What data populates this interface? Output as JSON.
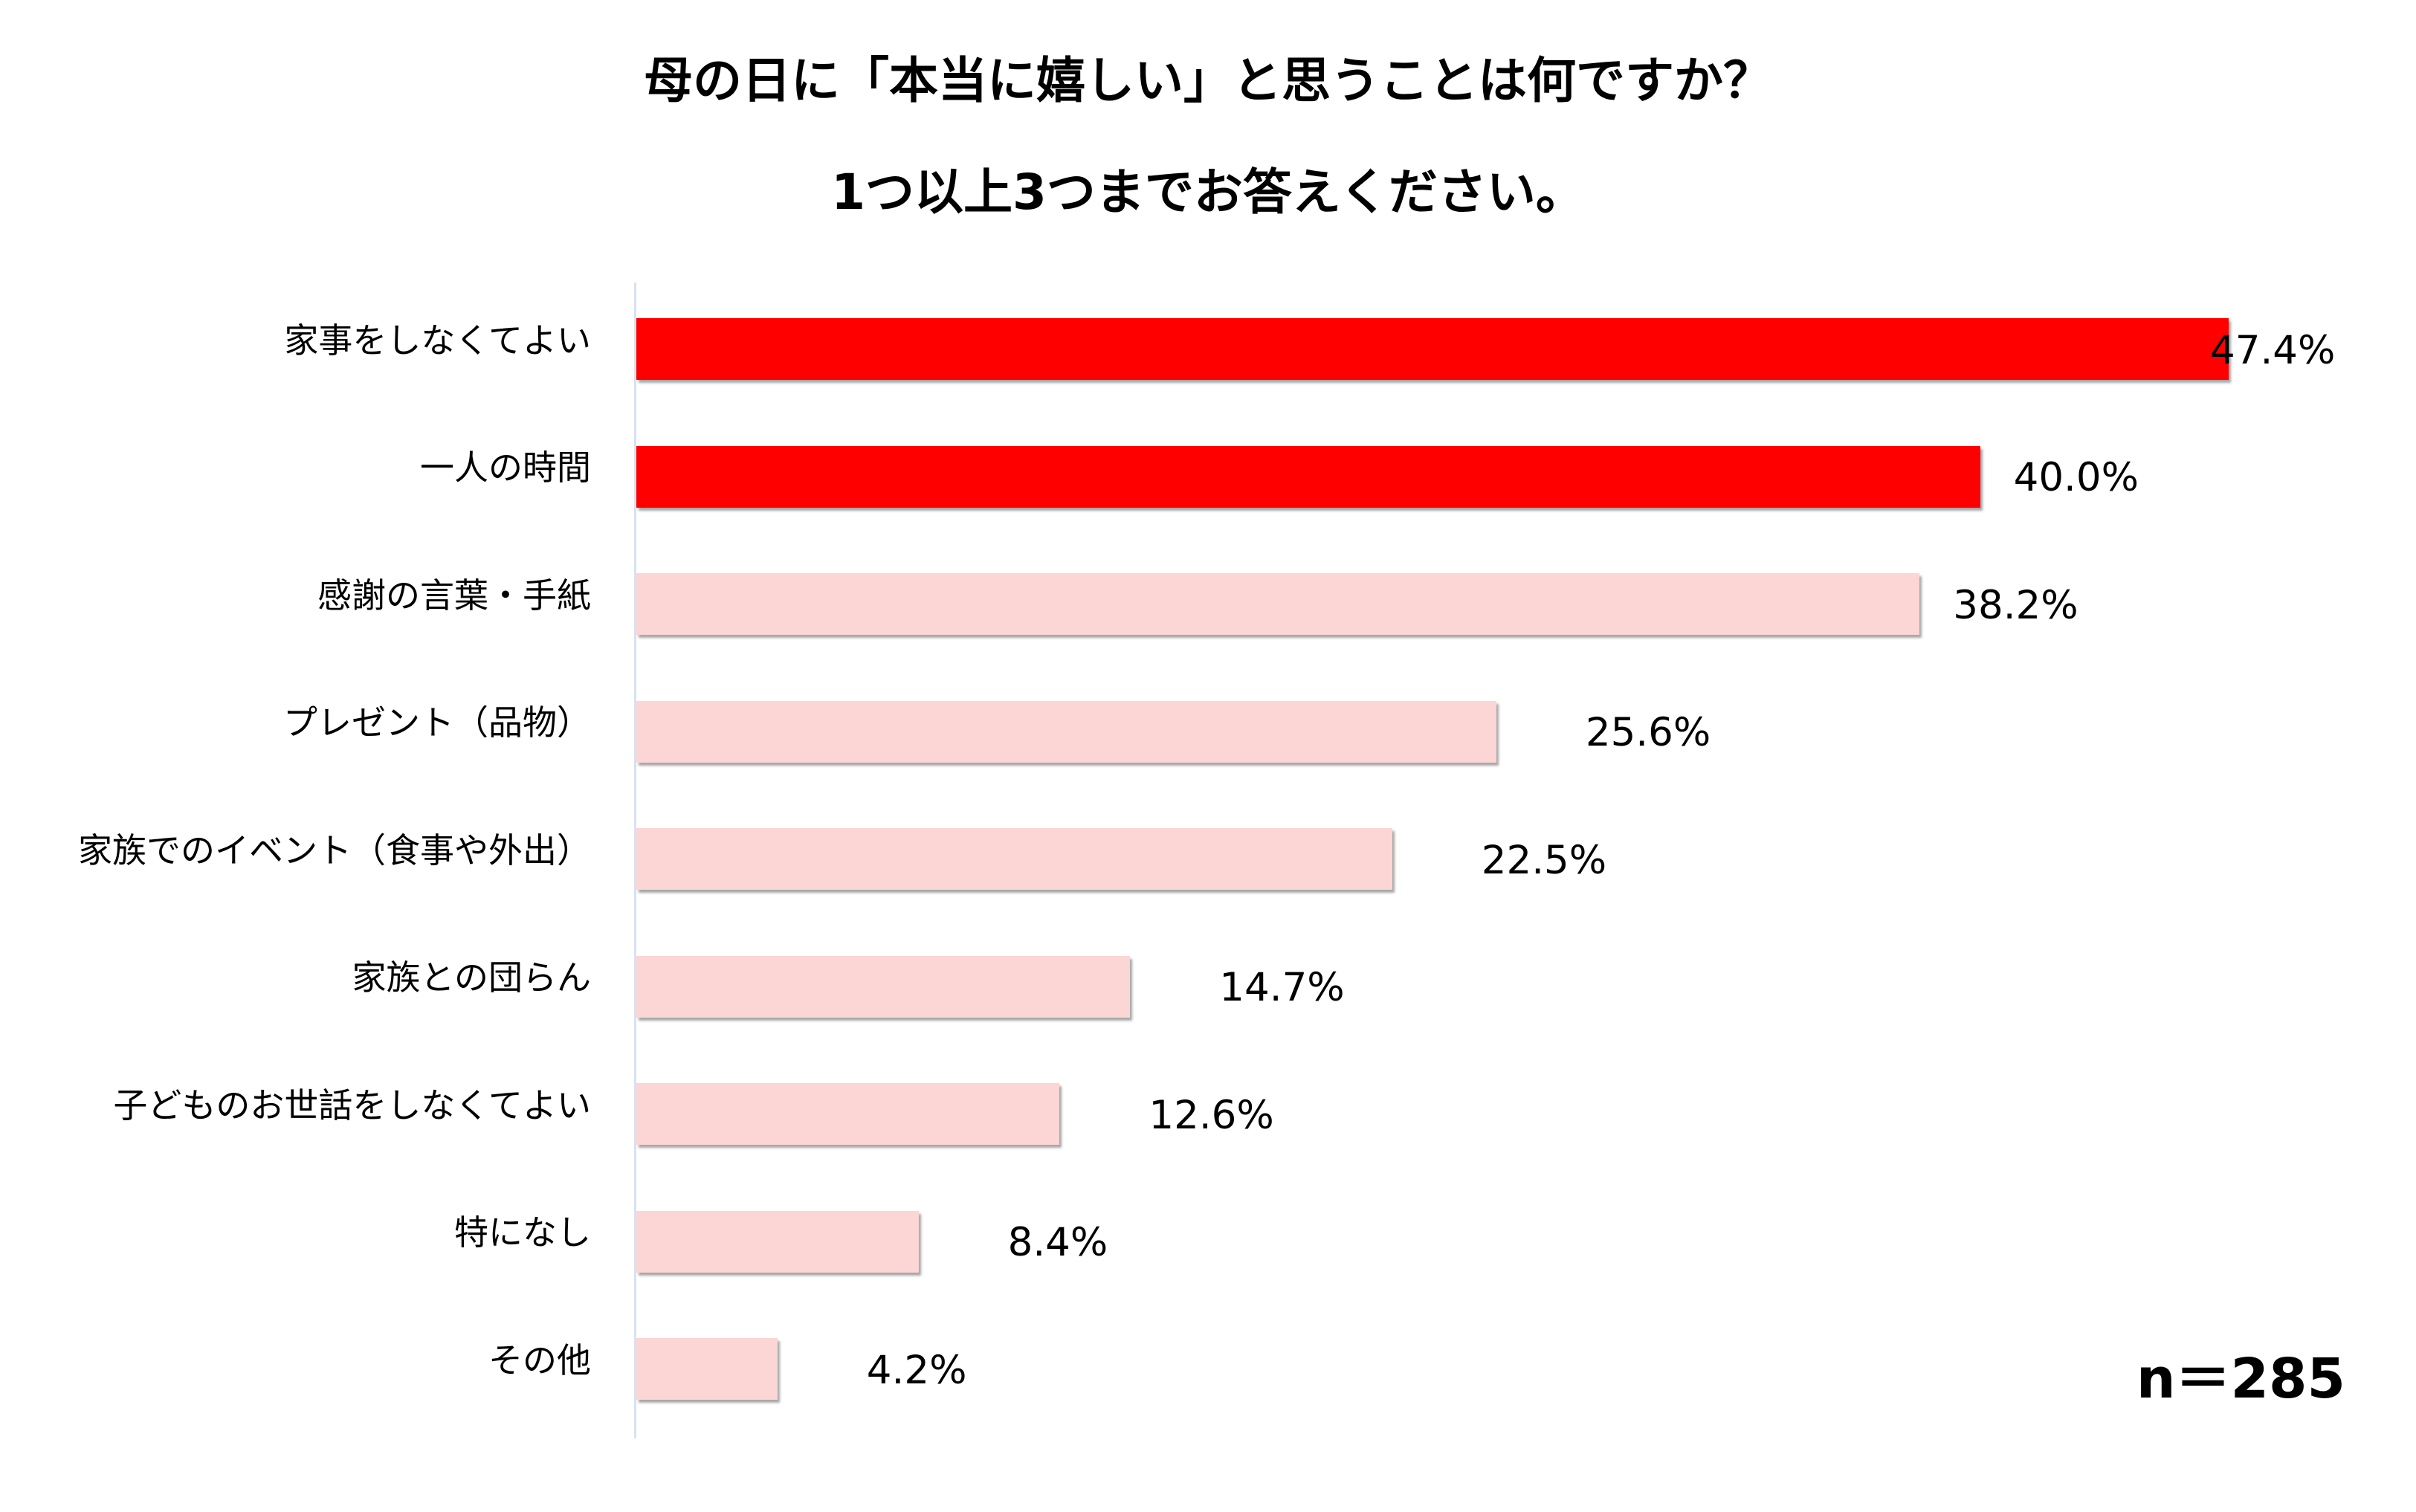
{
  "chart_data": {
    "type": "bar",
    "orientation": "horizontal",
    "title": "母の日に「本当に嬉しい」と思うことは何ですか？",
    "subtitle": "1つ以上3つまでお答えください。",
    "categories": [
      "家事をしなくてよい",
      "一人の時間",
      "感謝の言葉・手紙",
      "プレゼント（品物）",
      "家族でのイベント（食事や外出）",
      "家族との団らん",
      "子どものお世話をしなくてよい",
      "特になし",
      "その他"
    ],
    "values": [
      47.4,
      40.0,
      38.2,
      25.6,
      22.5,
      14.7,
      12.6,
      8.4,
      4.2
    ],
    "value_labels": [
      "47.4%",
      "40.0%",
      "38.2%",
      "25.6%",
      "22.5%",
      "14.7%",
      "12.6%",
      "8.4%",
      "4.2%"
    ],
    "unit": "%",
    "xlim": [
      0,
      50
    ],
    "grid": false,
    "highlight_count": 2,
    "colors": {
      "highlight": "#ff0000",
      "normal": "#fcd5d5"
    },
    "note": "n＝285"
  }
}
